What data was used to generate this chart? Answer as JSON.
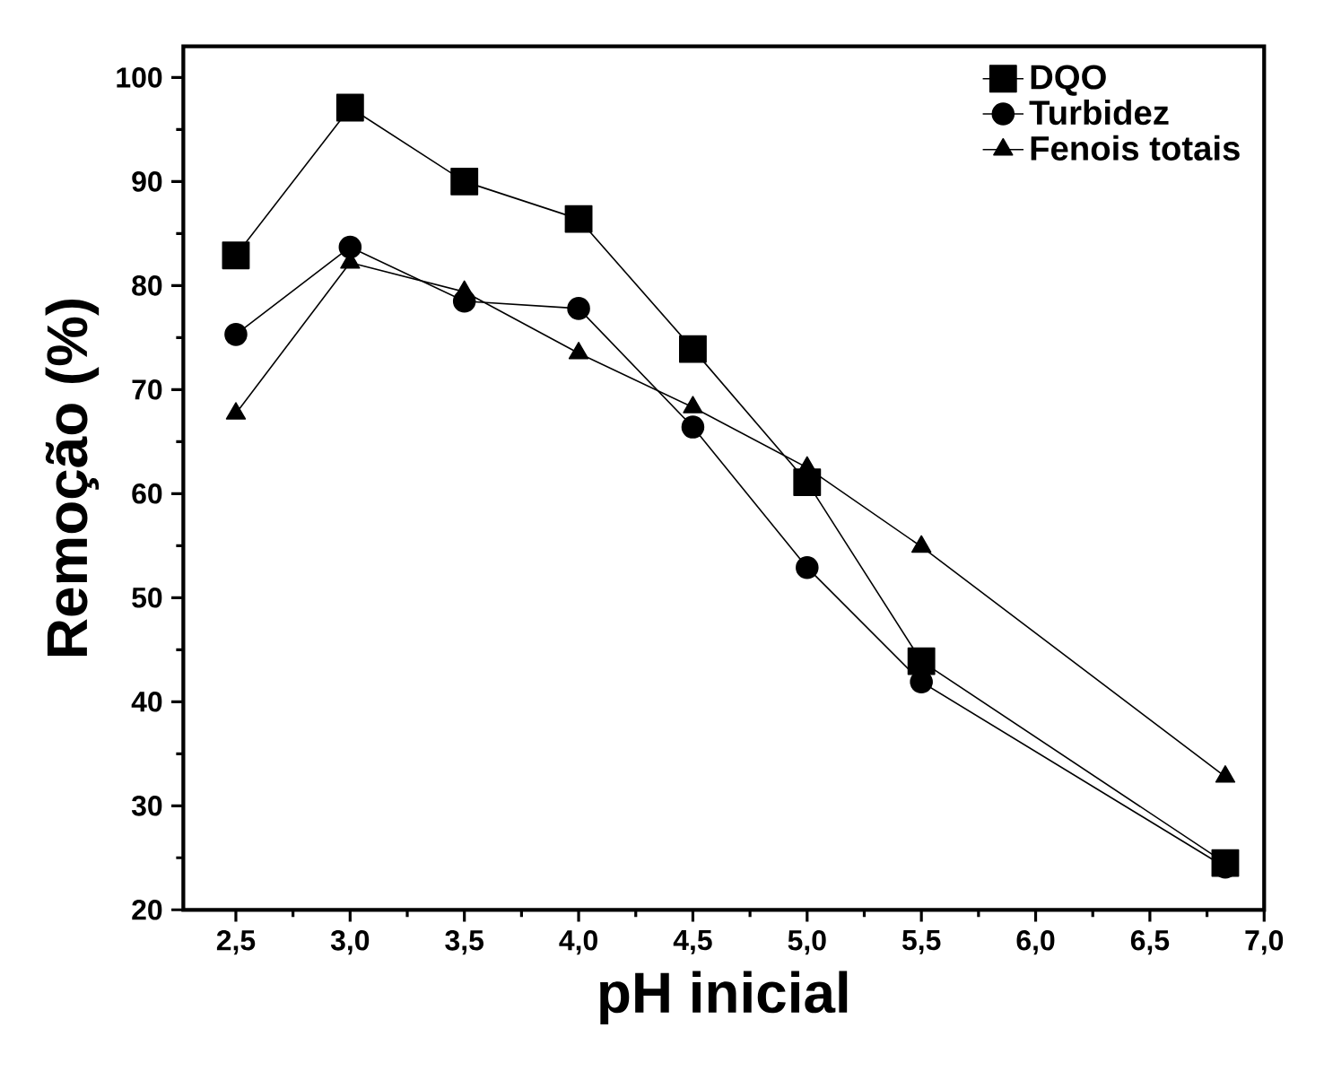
{
  "chart_data": {
    "type": "line",
    "xlabel": "pH inicial",
    "ylabel": "Remoção (%)",
    "x": [
      2.5,
      3.0,
      3.5,
      4.0,
      4.5,
      5.0,
      5.5,
      6.83
    ],
    "series": [
      {
        "name": "DQO",
        "color": "#000000",
        "marker": "square",
        "values": [
          82.9,
          97.1,
          90.0,
          86.4,
          73.9,
          61.1,
          43.9,
          24.5
        ]
      },
      {
        "name": "Turbidez",
        "color": "#000000",
        "marker": "circle",
        "values": [
          75.3,
          83.7,
          78.5,
          77.8,
          66.4,
          52.9,
          41.9,
          24.1
        ]
      },
      {
        "name": "Fenois totais",
        "color": "#000000",
        "marker": "triangle",
        "values": [
          67.7,
          82.2,
          79.4,
          73.5,
          68.3,
          62.5,
          54.9,
          32.8
        ]
      }
    ],
    "xlim": [
      2.27,
      7.0
    ],
    "ylim": [
      20,
      103
    ],
    "xticks": [
      {
        "value": 2.5,
        "label": "2,5"
      },
      {
        "value": 3.0,
        "label": "3,0"
      },
      {
        "value": 3.5,
        "label": "3,5"
      },
      {
        "value": 4.0,
        "label": "4,0"
      },
      {
        "value": 4.5,
        "label": "4,5"
      },
      {
        "value": 5.0,
        "label": "5,0"
      },
      {
        "value": 5.5,
        "label": "5,5"
      },
      {
        "value": 6.0,
        "label": "6,0"
      },
      {
        "value": 6.5,
        "label": "6,5"
      },
      {
        "value": 7.0,
        "label": "7,0"
      }
    ],
    "yticks": [
      20,
      30,
      40,
      50,
      60,
      70,
      80,
      90,
      100
    ],
    "legend": "top right",
    "line_style": "solid",
    "grid": false
  }
}
